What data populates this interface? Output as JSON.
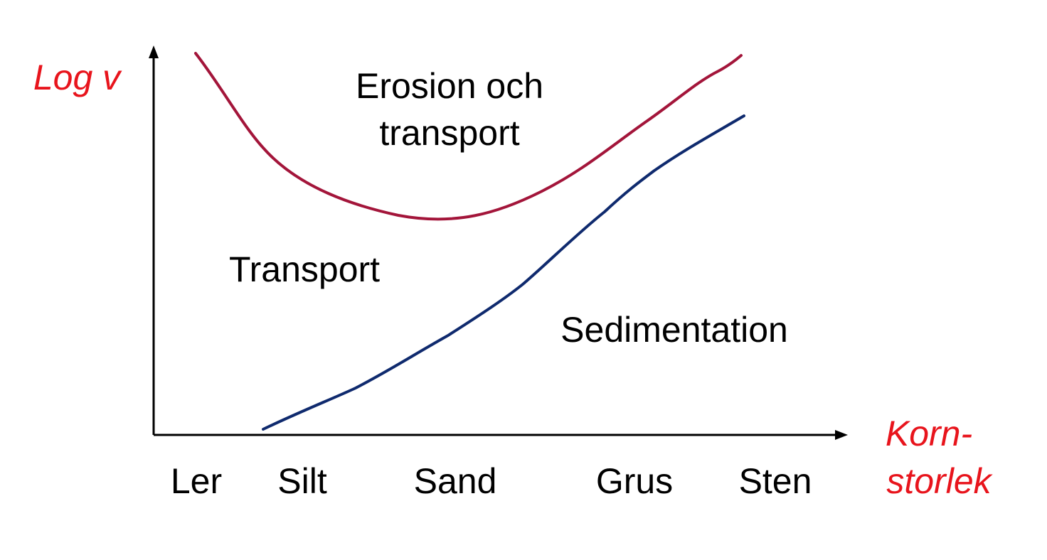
{
  "axes": {
    "y_title": "Log v",
    "x_title_line1": "Korn-",
    "x_title_line2": "storlek",
    "title_color": "#e8141c"
  },
  "grain_sizes": [
    "Ler",
    "Silt",
    "Sand",
    "Grus",
    "Sten"
  ],
  "regions": {
    "upper_line1": "Erosion och",
    "upper_line2": "transport",
    "middle": "Transport",
    "lower": "Sedimentation"
  },
  "curves": {
    "erosion_color": "#a3153a",
    "sedimentation_color": "#0f2a6e"
  }
}
